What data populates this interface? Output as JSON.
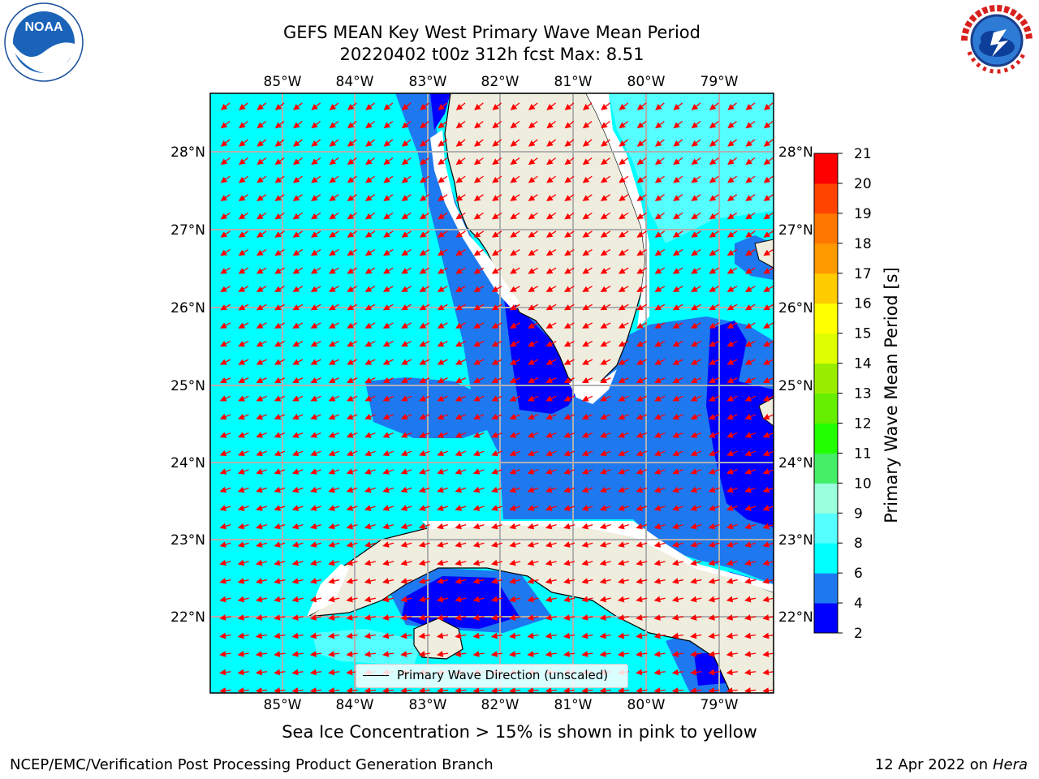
{
  "title": {
    "line1": "GEFS MEAN Key West Primary Wave Mean Period",
    "line2": "20220402 t00z 312h fcst   Max: 8.51"
  },
  "map": {
    "lon_labels": [
      "85°W",
      "84°W",
      "83°W",
      "82°W",
      "81°W",
      "80°W",
      "79°W"
    ],
    "lat_labels": [
      "28°N",
      "27°N",
      "26°N",
      "25°N",
      "24°N",
      "23°N",
      "22°N"
    ],
    "legend_label": "Primary Wave Direction (unscaled)",
    "arrow_color": "#ff0000",
    "land_color": "#efedde"
  },
  "colorbar": {
    "label": "Primary Wave Mean Period [s]",
    "ticks": [
      "2",
      "4",
      "6",
      "8",
      "9",
      "10",
      "11",
      "12",
      "13",
      "14",
      "15",
      "16",
      "17",
      "18",
      "19",
      "20",
      "21"
    ],
    "colors": [
      "#0000ff",
      "#1e78f0",
      "#00ffff",
      "#55ffff",
      "#99ffdd",
      "#44ee66",
      "#22ff00",
      "#66ee00",
      "#99ee00",
      "#ddff00",
      "#ffff00",
      "#ffcc00",
      "#ff9900",
      "#ff7700",
      "#ff4400",
      "#ff0000"
    ]
  },
  "caption": "Sea Ice Concentration > 15% is shown in pink to yellow",
  "footer": {
    "left": "NCEP/EMC/Verification Post Processing Product Generation Branch",
    "right_prefix": "12 Apr 2022 on ",
    "right_host": "Hera"
  },
  "logos": {
    "noaa_text": "NOAA",
    "nws_text": "NATIONAL WEATHER SERVICE"
  }
}
